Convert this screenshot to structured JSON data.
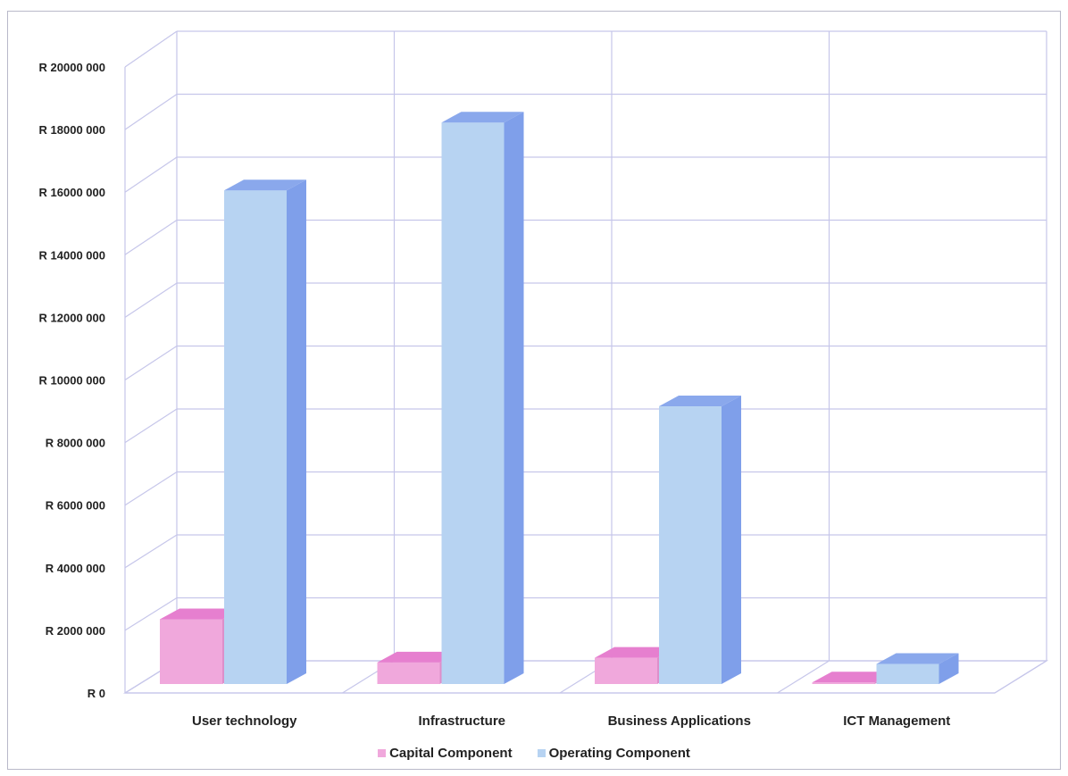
{
  "chart_data": {
    "type": "bar",
    "style": "3d-clustered-column",
    "categories": [
      "User technology",
      "Infrastructure",
      "Business Applications",
      "ICT Management"
    ],
    "series": [
      {
        "name": "Capital Component",
        "values": [
          2100000,
          700000,
          850000,
          50000
        ],
        "color": "#f0a8dc",
        "side_color": "#dd8fca",
        "top_color": "#e67fcf"
      },
      {
        "name": "Operating Component",
        "values": [
          16000000,
          18200000,
          9000000,
          650000
        ],
        "color": "#b7d3f2",
        "side_color": "#7f9fea",
        "top_color": "#8aa8ec"
      }
    ],
    "y_ticks": [
      "R 0",
      "R 2000 000",
      "R 4000 000",
      "R 6000 000",
      "R 8000 000",
      "R 10000 000",
      "R 12000 000",
      "R 14000 000",
      "R 16000 000",
      "R 18000 000",
      "R 20000 000"
    ],
    "ylim": [
      0,
      20000000
    ],
    "grid": true,
    "grid_color": "#c6c6ea",
    "legend_position": "bottom"
  }
}
